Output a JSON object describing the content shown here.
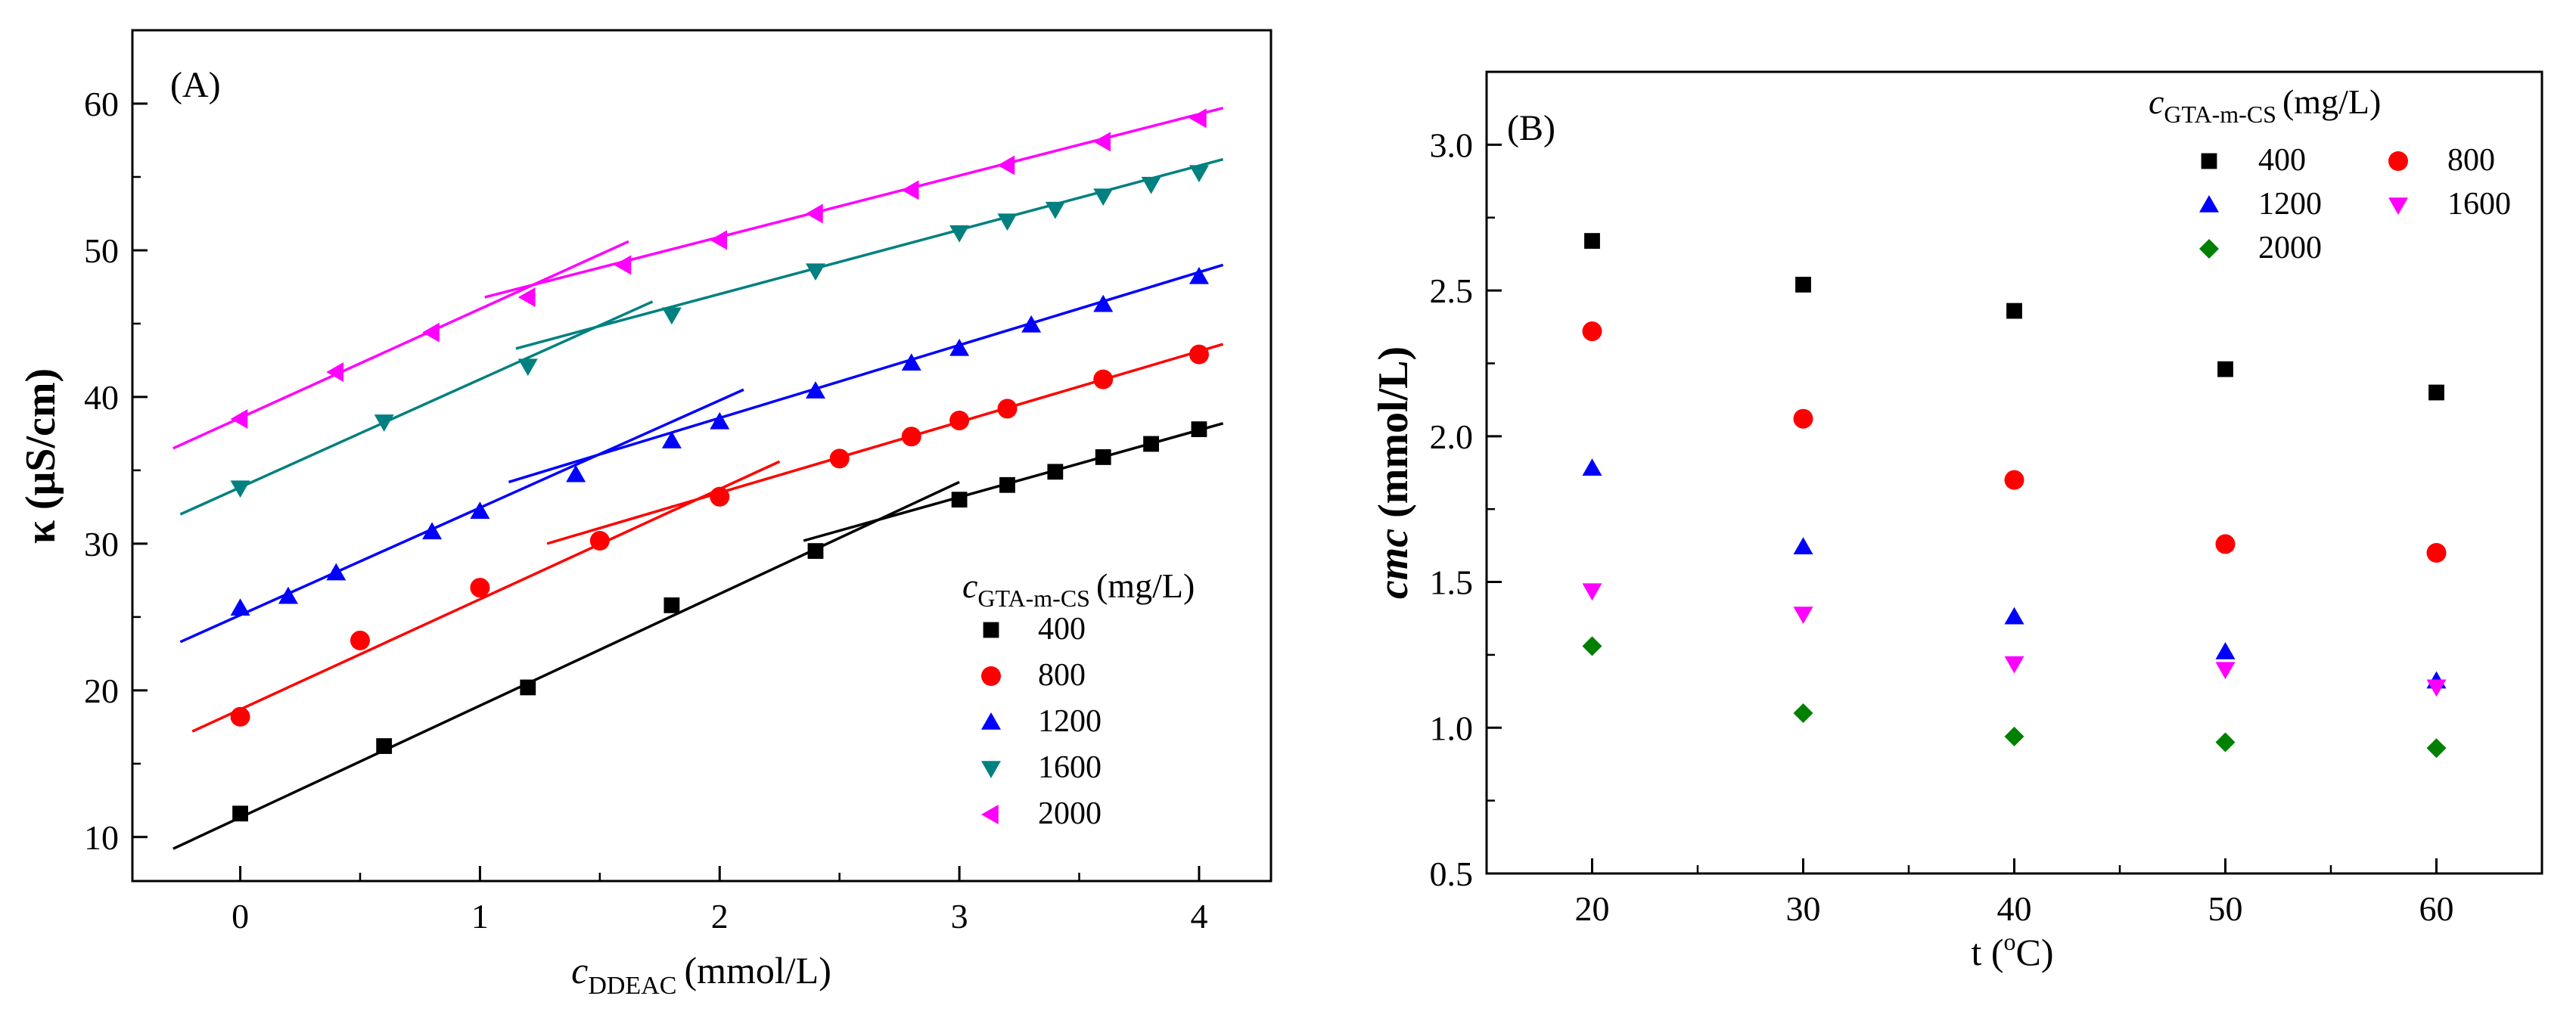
{
  "chart_data": [
    {
      "type": "scatter",
      "panel_label": "(A)",
      "xlabel_symbol": "c",
      "xlabel_sub": "DDEAC",
      "xlabel_unit": "(mmol/L)",
      "ylabel": "κ (μS/cm)",
      "xlim": [
        -0.45,
        4.3
      ],
      "ylim": [
        7,
        65
      ],
      "xticks": [
        0,
        1,
        2,
        3,
        4
      ],
      "yticks": [
        10,
        20,
        30,
        40,
        50,
        60
      ],
      "legend_title_symbol": "c",
      "legend_title_sub": "GTA-m-CS",
      "legend_title_unit": "(mg/L)",
      "legend_position": "lower-right",
      "series": [
        {
          "name": "400",
          "marker": "square",
          "color": "#000000",
          "x": [
            0,
            0.6,
            1.2,
            1.8,
            2.4,
            3.0,
            3.2,
            3.4,
            3.6,
            3.8,
            4.0
          ],
          "y": [
            11.6,
            16.2,
            20.2,
            25.8,
            29.5,
            33.0,
            34.0,
            34.9,
            35.9,
            36.8,
            37.8
          ],
          "fits": [
            [
              [
                -0.28,
                9.2
              ],
              [
                3.0,
                34.2
              ]
            ],
            [
              [
                2.35,
                30.2
              ],
              [
                4.1,
                38.2
              ]
            ]
          ]
        },
        {
          "name": "800",
          "marker": "circle",
          "color": "#ff0000",
          "x": [
            0,
            0.5,
            1.0,
            1.5,
            2.0,
            2.5,
            2.8,
            3.0,
            3.2,
            3.6,
            4.0
          ],
          "y": [
            18.2,
            23.4,
            27.0,
            30.2,
            33.2,
            35.8,
            37.3,
            38.4,
            39.2,
            41.2,
            42.9
          ],
          "fits": [
            [
              [
                -0.2,
                17.2
              ],
              [
                2.25,
                35.6
              ]
            ],
            [
              [
                1.28,
                30.0
              ],
              [
                4.1,
                43.6
              ]
            ]
          ]
        },
        {
          "name": "1200",
          "marker": "triangle-up",
          "color": "#0000ff",
          "x": [
            0,
            0.2,
            0.4,
            0.8,
            1.0,
            1.4,
            1.8,
            2.0,
            2.4,
            2.8,
            3.0,
            3.3,
            3.6,
            4.0
          ],
          "y": [
            25.6,
            26.4,
            28.0,
            30.8,
            32.2,
            34.7,
            37.0,
            38.3,
            40.4,
            42.3,
            43.3,
            44.9,
            46.3,
            48.2
          ],
          "fits": [
            [
              [
                -0.25,
                23.3
              ],
              [
                2.1,
                40.5
              ]
            ],
            [
              [
                1.12,
                34.2
              ],
              [
                4.1,
                49.0
              ]
            ]
          ]
        },
        {
          "name": "1600",
          "marker": "triangle-down",
          "color": "#008080",
          "x": [
            0,
            0.6,
            1.2,
            1.8,
            2.4,
            3.0,
            3.2,
            3.4,
            3.6,
            3.8,
            4.0
          ],
          "y": [
            33.8,
            38.3,
            42.1,
            45.6,
            48.6,
            51.2,
            52.0,
            52.8,
            53.7,
            54.5,
            55.3
          ],
          "fits": [
            [
              [
                -0.25,
                32.0
              ],
              [
                1.72,
                46.5
              ]
            ],
            [
              [
                1.15,
                43.3
              ],
              [
                4.1,
                56.2
              ]
            ]
          ]
        },
        {
          "name": "2000",
          "marker": "triangle-left",
          "color": "#ff00ff",
          "x": [
            0,
            0.4,
            0.8,
            1.2,
            1.6,
            2.0,
            2.4,
            2.8,
            3.2,
            3.6,
            4.0
          ],
          "y": [
            38.5,
            41.7,
            44.4,
            46.8,
            49.0,
            50.7,
            52.5,
            54.1,
            55.8,
            57.4,
            59.0
          ],
          "fits": [
            [
              [
                -0.28,
                36.5
              ],
              [
                1.62,
                50.6
              ]
            ],
            [
              [
                1.02,
                46.8
              ],
              [
                4.1,
                59.7
              ]
            ]
          ]
        }
      ]
    },
    {
      "type": "scatter",
      "panel_label": "(B)",
      "xlabel": "t (",
      "xlabel_sup": "o",
      "xlabel_tail": "C)",
      "ylabel_symbol": "cmc",
      "ylabel_unit": "(mmol/L)",
      "xlim": [
        15,
        65
      ],
      "ylim": [
        0.5,
        3.25
      ],
      "xticks": [
        20,
        30,
        40,
        50,
        60
      ],
      "yticks": [
        "0.5",
        "1.0",
        "1.5",
        "2.0",
        "2.5",
        "3.0"
      ],
      "legend_title_symbol": "c",
      "legend_title_sub": "GTA-m-CS",
      "legend_title_unit": "(mg/L)",
      "legend_position": "top-right",
      "x": [
        20,
        30,
        40,
        50,
        60
      ],
      "series": [
        {
          "name": "400",
          "marker": "square",
          "color": "#000000",
          "values": [
            2.67,
            2.52,
            2.43,
            2.23,
            2.15
          ]
        },
        {
          "name": "800",
          "marker": "circle",
          "color": "#ff0000",
          "values": [
            2.36,
            2.06,
            1.85,
            1.63,
            1.6
          ]
        },
        {
          "name": "1200",
          "marker": "triangle-up",
          "color": "#0000ff",
          "values": [
            1.89,
            1.62,
            1.38,
            1.26,
            1.16
          ]
        },
        {
          "name": "1600",
          "marker": "triangle-down",
          "color": "#ff00ff",
          "values": [
            1.47,
            1.39,
            1.22,
            1.2,
            1.14
          ]
        },
        {
          "name": "2000",
          "marker": "diamond",
          "color": "#008000",
          "values": [
            1.28,
            1.05,
            0.97,
            0.95,
            0.93
          ]
        }
      ]
    }
  ]
}
